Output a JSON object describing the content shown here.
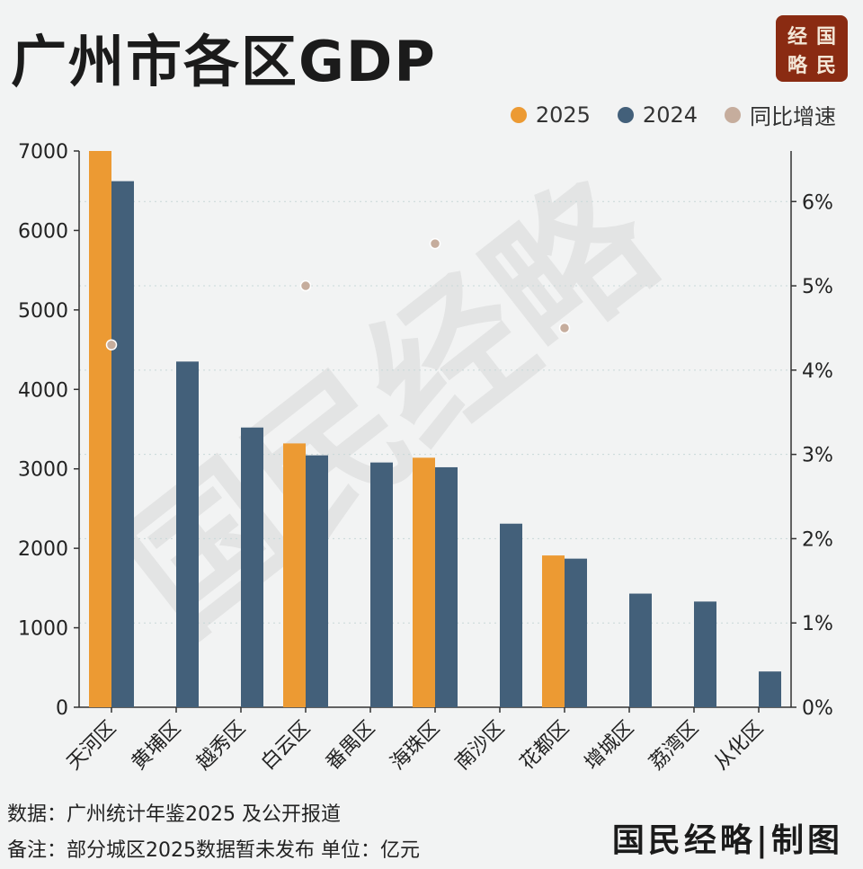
{
  "title": "广州市各区GDP",
  "logo": {
    "chars": [
      "经",
      "国",
      "略",
      "民"
    ]
  },
  "legend": {
    "y2025": "2025",
    "y2024": "2024",
    "growth": "同比增速"
  },
  "colors": {
    "y2025": "#ec9a33",
    "y2024": "#43607a",
    "growth": "#c6ad9d",
    "axis": "#333333"
  },
  "chart_data": {
    "type": "bar",
    "categories": [
      "天河区",
      "黄埔区",
      "越秀区",
      "白云区",
      "番禺区",
      "海珠区",
      "南沙区",
      "花都区",
      "增城区",
      "荔湾区",
      "从化区"
    ],
    "series": [
      {
        "name": "2025",
        "values": [
          7000,
          null,
          null,
          3320,
          null,
          3140,
          null,
          1910,
          null,
          null,
          null
        ]
      },
      {
        "name": "2024",
        "values": [
          6620,
          4350,
          3520,
          3170,
          3080,
          3020,
          2310,
          1870,
          1430,
          1330,
          450
        ]
      },
      {
        "name": "同比增速",
        "type": "scatter",
        "axis": "right",
        "values": [
          4.3,
          null,
          null,
          5.0,
          null,
          5.5,
          null,
          4.5,
          null,
          null,
          null
        ]
      }
    ],
    "y_left": {
      "min": 0,
      "max": 7000,
      "ticks": [
        "0",
        "1000",
        "2000",
        "3000",
        "4000",
        "5000",
        "6000",
        "7000"
      ]
    },
    "y_right": {
      "min": 0,
      "max": 6.6,
      "ticks": [
        "0%",
        "1%",
        "2%",
        "3%",
        "4%",
        "5%",
        "6%"
      ]
    }
  },
  "watermark": "国民经略",
  "footer": {
    "source": "数据：广州统计年鉴2025 及公开报道",
    "note": "备注：部分城区2025数据暂未发布 单位：亿元",
    "brand": "国民经略|制图"
  }
}
